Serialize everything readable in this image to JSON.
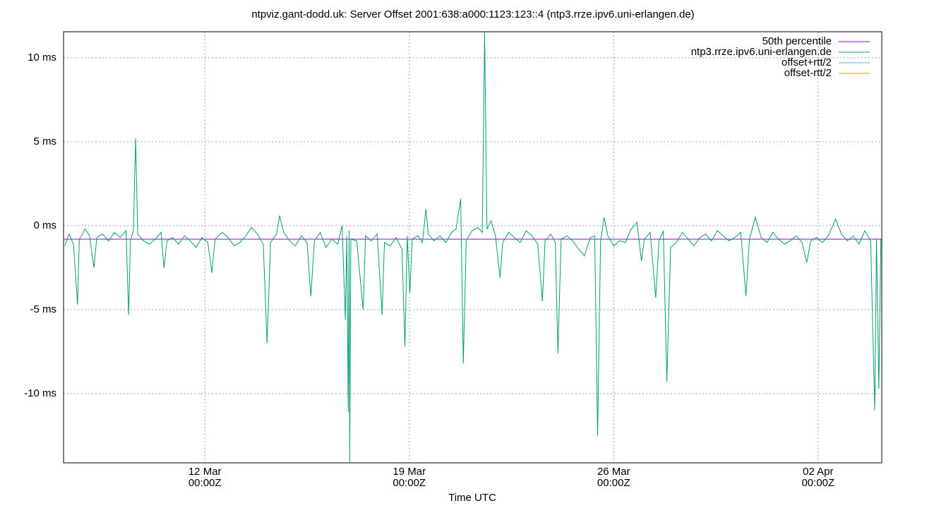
{
  "chart_data": {
    "type": "line",
    "title": "ntpviz.gant-dodd.uk: Server Offset 2001:638:a000:1123:123::4 (ntp3.rrze.ipv6.uni-erlangen.de)",
    "x_label": "Time UTC",
    "xlim": [
      7.16,
      35.18
    ],
    "xticks": [
      {
        "value": 12,
        "label": [
          "12 Mar",
          "00:00Z"
        ]
      },
      {
        "value": 19,
        "label": [
          "19 Mar",
          "00:00Z"
        ]
      },
      {
        "value": 26,
        "label": [
          "26 Mar",
          "00:00Z"
        ]
      },
      {
        "value": 33,
        "label": [
          "02 Apr",
          "00:00Z"
        ]
      }
    ],
    "ylim": [
      -14.12,
      11.55
    ],
    "yticks": [
      {
        "value": -10,
        "label": "-10 ms"
      },
      {
        "value": -5,
        "label": "-5 ms"
      },
      {
        "value": 0,
        "label": "0 ms"
      },
      {
        "value": 5,
        "label": "5 ms"
      },
      {
        "value": 10,
        "label": "10 ms"
      }
    ],
    "grid": true,
    "legend": "top-right",
    "series": [
      {
        "name": "50th percentile",
        "color": "#9400d3",
        "x": [
          7.16,
          35.18
        ],
        "values": [
          -0.8,
          -0.8
        ]
      },
      {
        "name": "ntp3.rrze.ipv6.uni-erlangen.de",
        "color": "#009e73",
        "x": [
          7.2,
          7.35,
          7.5,
          7.64,
          7.7,
          7.9,
          8.05,
          8.2,
          8.3,
          8.5,
          8.7,
          8.9,
          9.1,
          9.3,
          9.39,
          9.45,
          9.55,
          9.63,
          9.7,
          9.9,
          10.1,
          10.3,
          10.5,
          10.6,
          10.7,
          10.9,
          11.1,
          11.3,
          11.5,
          11.7,
          11.9,
          12.1,
          12.24,
          12.35,
          12.6,
          12.8,
          13.0,
          13.2,
          13.4,
          13.6,
          13.8,
          14.0,
          14.13,
          14.25,
          14.45,
          14.56,
          14.7,
          14.9,
          15.1,
          15.3,
          15.5,
          15.63,
          15.75,
          15.95,
          16.15,
          16.35,
          16.55,
          16.7,
          16.81,
          16.86,
          16.91,
          16.94,
          16.96,
          17.0,
          17.2,
          17.42,
          17.5,
          17.7,
          17.9,
          18.07,
          18.15,
          18.35,
          18.55,
          18.75,
          18.85,
          18.93,
          19.02,
          19.1,
          19.3,
          19.45,
          19.57,
          19.65,
          19.85,
          20.05,
          20.25,
          20.45,
          20.6,
          20.76,
          20.85,
          20.95,
          21.15,
          21.35,
          21.5,
          21.58,
          21.66,
          21.8,
          21.95,
          22.11,
          22.2,
          22.4,
          22.6,
          22.8,
          23.0,
          23.2,
          23.4,
          23.56,
          23.65,
          23.85,
          24.0,
          24.09,
          24.2,
          24.4,
          24.6,
          24.8,
          25.0,
          25.2,
          25.35,
          25.45,
          25.55,
          25.67,
          25.8,
          26.0,
          26.2,
          26.4,
          26.6,
          26.8,
          26.95,
          27.05,
          27.25,
          27.44,
          27.55,
          27.7,
          27.82,
          27.95,
          28.15,
          28.35,
          28.55,
          28.75,
          28.95,
          29.15,
          29.35,
          29.55,
          29.75,
          29.95,
          30.15,
          30.35,
          30.53,
          30.65,
          30.85,
          31.05,
          31.25,
          31.45,
          31.65,
          31.85,
          32.05,
          32.25,
          32.45,
          32.61,
          32.75,
          32.95,
          33.15,
          33.35,
          33.6,
          33.8,
          34.0,
          34.2,
          34.4,
          34.6,
          34.8,
          34.94,
          35.0,
          35.08,
          35.15
        ],
        "values": [
          -1.2,
          -0.5,
          -1.1,
          -4.7,
          -0.8,
          -0.2,
          -0.6,
          -2.5,
          -0.7,
          -0.5,
          -0.9,
          -0.4,
          -0.7,
          -0.3,
          -5.3,
          -0.9,
          -0.3,
          5.2,
          -0.5,
          -0.9,
          -1.1,
          -0.8,
          -0.4,
          -2.5,
          -0.9,
          -0.7,
          -1.1,
          -0.6,
          -0.9,
          -1.3,
          -0.7,
          -1.0,
          -2.8,
          -0.8,
          -0.4,
          -0.7,
          -1.2,
          -1.0,
          -0.6,
          -0.1,
          -0.5,
          -1.1,
          -7.0,
          -1.0,
          -0.5,
          0.6,
          -0.4,
          -0.9,
          -1.2,
          -0.6,
          -1.0,
          -4.2,
          -0.9,
          -0.4,
          -1.3,
          -0.8,
          -1.1,
          0.0,
          -5.6,
          -0.6,
          -11.1,
          -0.3,
          -14.1,
          -0.8,
          -0.9,
          -5.0,
          -0.6,
          -0.9,
          -0.5,
          -5.3,
          -1.0,
          -1.2,
          -0.7,
          -1.4,
          -7.2,
          -0.6,
          -4.0,
          -0.8,
          -0.6,
          -1.0,
          1.0,
          -0.5,
          -0.9,
          -0.6,
          -1.0,
          -0.4,
          -0.2,
          1.6,
          -8.2,
          -0.9,
          -0.3,
          -0.1,
          -0.4,
          11.5,
          -0.2,
          0.3,
          -0.6,
          -3.1,
          -1.0,
          -0.4,
          -0.7,
          -1.0,
          -0.3,
          -0.6,
          -1.1,
          -4.5,
          -0.9,
          -0.5,
          -1.0,
          -7.6,
          -0.8,
          -0.6,
          -0.9,
          -1.4,
          -1.8,
          -0.7,
          -0.6,
          -12.5,
          -1.0,
          0.5,
          -0.6,
          -1.2,
          -0.9,
          -1.0,
          -0.2,
          0.2,
          -2.1,
          -0.8,
          -0.4,
          -4.3,
          -0.9,
          -0.3,
          -9.3,
          -1.3,
          -1.0,
          -0.4,
          -0.8,
          -1.2,
          -0.7,
          -0.5,
          -0.9,
          -0.3,
          -0.6,
          -0.9,
          -0.7,
          -0.4,
          -4.2,
          -0.8,
          0.5,
          -0.7,
          -1.0,
          -0.4,
          -0.8,
          -1.1,
          -0.9,
          -0.6,
          -1.0,
          -2.2,
          -0.9,
          -0.7,
          -1.0,
          -0.6,
          0.4,
          -0.5,
          -0.9,
          -0.6,
          -1.1,
          -0.3,
          -0.9,
          -11.0,
          -0.8,
          -9.7,
          -0.8
        ]
      },
      {
        "name": "offset+rtt/2",
        "color": "#56b4e9"
      },
      {
        "name": "offset-rtt/2",
        "color": "#e69f00"
      }
    ]
  }
}
